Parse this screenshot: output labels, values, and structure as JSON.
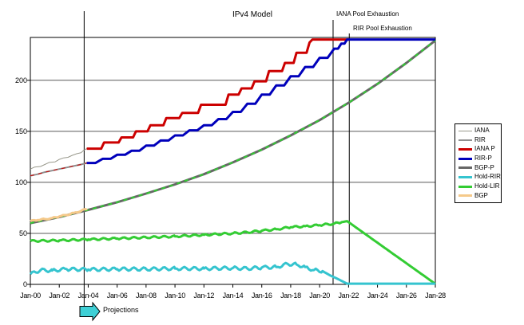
{
  "title": "IPv4 Model",
  "annotations": {
    "iana_exhaustion": {
      "label": "IANA Pool Exhaustion",
      "t": 20.93
    },
    "rir_exhaustion": {
      "label": "RIR Pool Exhaustion",
      "t": 22.05
    },
    "projections": {
      "label": "Projections",
      "t": 3.72
    }
  },
  "colors": {
    "axis": "#000000",
    "grid": "#595959",
    "arrow_fill": "#3ed0d6",
    "background": "#ffffff"
  },
  "chart_data": {
    "type": "line",
    "title": "IPv4 Model",
    "xlabel": "",
    "ylabel": "",
    "x_unit": "years since Jan-2000",
    "xlim": [
      0,
      28
    ],
    "ylim": [
      0,
      242
    ],
    "grid": "horizontal",
    "legend_position": "right",
    "x_tick_values": [
      0,
      2,
      4,
      6,
      8,
      10,
      12,
      14,
      16,
      18,
      20,
      22,
      24,
      26,
      28
    ],
    "x_tick_labels": [
      "Jan-00",
      "Jan-02",
      "Jan-04",
      "Jan-06",
      "Jan-08",
      "Jan-10",
      "Jan-12",
      "Jan-14",
      "Jan-16",
      "Jan-18",
      "Jan-20",
      "Jan-22",
      "Jan-24",
      "Jan-26",
      "Jan-28"
    ],
    "y_tick_values": [
      0,
      50,
      100,
      150,
      200
    ],
    "y_tick_labels": [
      "0",
      "50",
      "100",
      "150",
      "200"
    ],
    "series": [
      {
        "name": "IANA",
        "color": "#99998c",
        "width": 1,
        "points": [
          [
            0,
            113
          ],
          [
            0.3,
            115
          ],
          [
            0.7,
            115.5
          ],
          [
            1.0,
            117.5
          ],
          [
            1.3,
            119.5
          ],
          [
            1.7,
            120
          ],
          [
            2.0,
            122.5
          ],
          [
            2.3,
            124
          ],
          [
            2.6,
            124.5
          ],
          [
            2.9,
            126.5
          ],
          [
            3.2,
            128
          ],
          [
            3.5,
            129
          ],
          [
            3.7,
            131.5
          ],
          [
            3.9,
            133
          ]
        ]
      },
      {
        "name": "RIR",
        "color": "#8f8f8f",
        "width": 2,
        "overlay_dash_color": "#cc0000",
        "points": [
          [
            0,
            106.5
          ],
          [
            0.5,
            108
          ],
          [
            1,
            110
          ],
          [
            1.5,
            111.5
          ],
          [
            2,
            113
          ],
          [
            2.5,
            114.5
          ],
          [
            3,
            116
          ],
          [
            3.5,
            117.5
          ],
          [
            3.9,
            119
          ]
        ]
      },
      {
        "name": "IANA P",
        "color": "#cc0000",
        "width": 3,
        "points": [
          [
            3.9,
            133
          ],
          [
            4.9,
            133
          ],
          [
            5.1,
            139
          ],
          [
            6.1,
            139
          ],
          [
            6.3,
            144
          ],
          [
            7.1,
            144
          ],
          [
            7.3,
            150
          ],
          [
            8.1,
            150
          ],
          [
            8.3,
            156
          ],
          [
            9.2,
            156
          ],
          [
            9.4,
            163
          ],
          [
            10.3,
            163
          ],
          [
            10.5,
            168
          ],
          [
            11.6,
            168
          ],
          [
            11.8,
            176
          ],
          [
            13.5,
            176
          ],
          [
            13.7,
            186
          ],
          [
            14.4,
            186
          ],
          [
            14.6,
            192
          ],
          [
            15.3,
            192
          ],
          [
            15.5,
            199
          ],
          [
            16.3,
            199
          ],
          [
            16.5,
            209
          ],
          [
            17.4,
            209
          ],
          [
            17.6,
            217
          ],
          [
            18.2,
            217
          ],
          [
            18.4,
            227
          ],
          [
            19.1,
            227
          ],
          [
            19.3,
            237
          ],
          [
            19.5,
            240
          ],
          [
            22.05,
            240
          ]
        ]
      },
      {
        "name": "RIR-P",
        "color": "#0000bb",
        "width": 3,
        "ministep": true,
        "points": [
          [
            3.9,
            119
          ],
          [
            5,
            123
          ],
          [
            6,
            127
          ],
          [
            7,
            131
          ],
          [
            8,
            136
          ],
          [
            9,
            141
          ],
          [
            10,
            146
          ],
          [
            11,
            151
          ],
          [
            12,
            156
          ],
          [
            13,
            162
          ],
          [
            14,
            169
          ],
          [
            15,
            177
          ],
          [
            16,
            186
          ],
          [
            17,
            195
          ],
          [
            18,
            204
          ],
          [
            19,
            213
          ],
          [
            20,
            222
          ],
          [
            21,
            231
          ],
          [
            21.5,
            236
          ],
          [
            21.9,
            240
          ],
          [
            28,
            240
          ]
        ]
      },
      {
        "name": "BGP-P",
        "color": "#666666",
        "width": 3,
        "overlay_dash_color": "#33cc33",
        "points": [
          [
            0,
            60
          ],
          [
            2,
            66
          ],
          [
            4,
            73
          ],
          [
            6,
            80.5
          ],
          [
            8,
            89
          ],
          [
            10,
            98
          ],
          [
            12,
            108
          ],
          [
            14,
            119.5
          ],
          [
            16,
            132
          ],
          [
            18,
            146
          ],
          [
            20,
            161
          ],
          [
            22,
            178
          ],
          [
            24,
            196.5
          ],
          [
            26,
            217
          ],
          [
            28,
            239
          ]
        ]
      },
      {
        "name": "Hold-RIR",
        "color": "#35c4cf",
        "width": 3,
        "wavy": true,
        "wavy_amp": 1.6,
        "wavy_until": 20.2,
        "points": [
          [
            0,
            10
          ],
          [
            0.7,
            14
          ],
          [
            1.5,
            13.5
          ],
          [
            2.5,
            15
          ],
          [
            4,
            14.5
          ],
          [
            6,
            15
          ],
          [
            8,
            15
          ],
          [
            10,
            15.5
          ],
          [
            12,
            15.5
          ],
          [
            14,
            16
          ],
          [
            15,
            15.5
          ],
          [
            16,
            16.5
          ],
          [
            17,
            17
          ],
          [
            17.8,
            20
          ],
          [
            18.4,
            19.5
          ],
          [
            19,
            17
          ],
          [
            19.6,
            14
          ],
          [
            20.2,
            13
          ],
          [
            20.7,
            9
          ],
          [
            21.3,
            5
          ],
          [
            21.9,
            0.7
          ],
          [
            28,
            0.7
          ]
        ]
      },
      {
        "name": "Hold-LIR",
        "color": "#33cc33",
        "width": 3,
        "wavy": true,
        "wavy_amp": 0.9,
        "wavy_until": 21.5,
        "points": [
          [
            0,
            42.5
          ],
          [
            2,
            43
          ],
          [
            4,
            44
          ],
          [
            6,
            45
          ],
          [
            8,
            46
          ],
          [
            10,
            47
          ],
          [
            12,
            48.5
          ],
          [
            14,
            50
          ],
          [
            15,
            51
          ],
          [
            16,
            52.5
          ],
          [
            17,
            54
          ],
          [
            18,
            56
          ],
          [
            19,
            57
          ],
          [
            20,
            58
          ],
          [
            21,
            59.5
          ],
          [
            21.9,
            62
          ],
          [
            28,
            0.5
          ]
        ]
      },
      {
        "name": "BGP",
        "color": "#f5c98a",
        "width": 3,
        "wavy": true,
        "wavy_amp": 0.6,
        "wavy_until": 3.9,
        "points": [
          [
            0,
            62
          ],
          [
            0.5,
            63
          ],
          [
            1,
            64
          ],
          [
            1.5,
            65
          ],
          [
            2,
            66.5
          ],
          [
            2.5,
            68
          ],
          [
            3,
            70
          ],
          [
            3.5,
            72
          ],
          [
            3.9,
            74
          ]
        ]
      }
    ]
  }
}
